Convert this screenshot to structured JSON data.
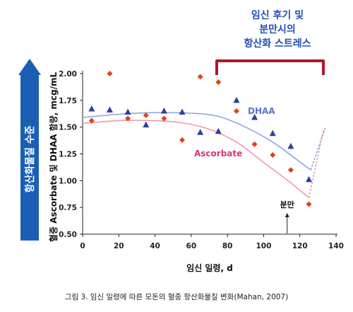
{
  "chart_data": {
    "type": "scatter",
    "xlabel": "임신 일령, d",
    "ylabel": "혈중 Ascorbate 및 DHAA 함량, mcg/mL",
    "xlim": [
      0,
      140
    ],
    "ylim": [
      0.5,
      2.0
    ],
    "xticks": [
      "0",
      "20",
      "40",
      "60",
      "80",
      "100",
      "120",
      "140"
    ],
    "yticks": [
      "0.50",
      "0.75",
      "1.00",
      "1.25",
      "1.50",
      "1.75",
      "2.00"
    ],
    "grid": false,
    "series": [
      {
        "name": "DHAA",
        "marker": "triangle",
        "color": "#2f3f9a",
        "points": [
          [
            5,
            1.67
          ],
          [
            15,
            1.66
          ],
          [
            25,
            1.64
          ],
          [
            35,
            1.52
          ],
          [
            45,
            1.65
          ],
          [
            55,
            1.64
          ],
          [
            65,
            1.45
          ],
          [
            75,
            1.46
          ],
          [
            85,
            1.75
          ],
          [
            95,
            1.59
          ],
          [
            105,
            1.44
          ],
          [
            115,
            1.32
          ],
          [
            125,
            1.01
          ]
        ],
        "trend_color": "#8ea7dc",
        "trend": [
          [
            0,
            1.59
          ],
          [
            20,
            1.62
          ],
          [
            40,
            1.635
          ],
          [
            60,
            1.63
          ],
          [
            75,
            1.6
          ],
          [
            90,
            1.5
          ],
          [
            105,
            1.36
          ],
          [
            118,
            1.2
          ],
          [
            126,
            1.1
          ],
          [
            134,
            1.49
          ]
        ]
      },
      {
        "name": "Ascorbate",
        "marker": "diamond",
        "color": "#e0421e",
        "points": [
          [
            5,
            1.56
          ],
          [
            15,
            2.0
          ],
          [
            25,
            1.58
          ],
          [
            35,
            1.61
          ],
          [
            45,
            1.58
          ],
          [
            55,
            1.38
          ],
          [
            65,
            1.97
          ],
          [
            75,
            1.92
          ],
          [
            85,
            1.65
          ],
          [
            95,
            1.34
          ],
          [
            105,
            1.24
          ],
          [
            115,
            1.1
          ],
          [
            125,
            0.78
          ]
        ],
        "trend_color": "#ef9aa8",
        "trend": [
          [
            0,
            1.535
          ],
          [
            20,
            1.56
          ],
          [
            40,
            1.56
          ],
          [
            55,
            1.54
          ],
          [
            70,
            1.48
          ],
          [
            85,
            1.36
          ],
          [
            100,
            1.17
          ],
          [
            115,
            0.98
          ],
          [
            125,
            0.84
          ],
          [
            133,
            1.47
          ]
        ]
      }
    ],
    "annotations": {
      "delivery": "분만",
      "delivery_x": 113,
      "bracket_text": [
        "임신 후기 및",
        "분만시의",
        "항산화 스트레스"
      ],
      "arrow_text": "항산화물질 수준"
    }
  },
  "labels": {
    "dhaa": "DHAA",
    "ascorbate": "Ascorbate"
  },
  "colors": {
    "axis_blue": "#1a5fb4",
    "bracket_red": "#b0172b",
    "label_blue": "#1f4fb4",
    "dhaa_label": "#5a77c4",
    "ascorbate_label": "#d23b6b"
  },
  "caption": "그림 3. 임신 일령에 따른 모돈의 혈중 항산화물질 변화(Mahan, 2007)"
}
